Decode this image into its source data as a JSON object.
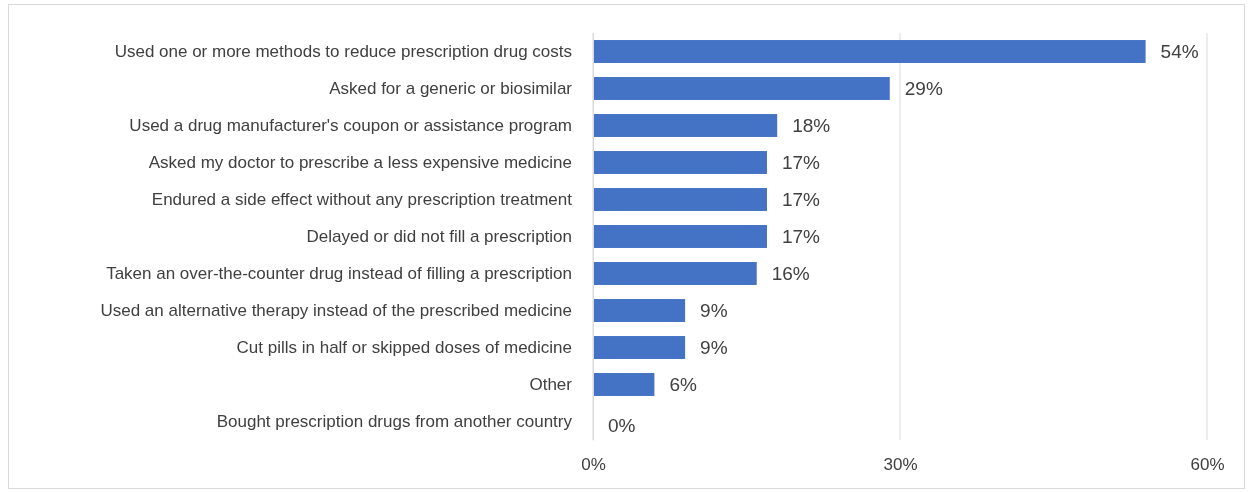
{
  "chart_data": {
    "type": "bar",
    "orientation": "horizontal",
    "categories": [
      "Used one or more methods to reduce prescription drug costs",
      "Asked for a generic or biosimilar",
      "Used a drug manufacturer's coupon or assistance program",
      "Asked my doctor to prescribe a less expensive medicine",
      "Endured a side effect without any prescription treatment",
      "Delayed or did not fill a prescription",
      "Taken an over-the-counter drug instead of filling a prescription",
      "Used an alternative therapy instead of the prescribed medicine",
      "Cut pills in half or skipped doses of medicine",
      "Other",
      "Bought prescription drugs from another country"
    ],
    "values": [
      54,
      29,
      18,
      17,
      17,
      17,
      16,
      9,
      9,
      6,
      0
    ],
    "value_labels": [
      "54%",
      "29%",
      "18%",
      "17%",
      "17%",
      "17%",
      "16%",
      "9%",
      "9%",
      "6%",
      "0%"
    ],
    "color": "#4472c4",
    "xlim": [
      0,
      60
    ],
    "xticks": [
      {
        "value": 0,
        "label": "0%"
      },
      {
        "value": 30,
        "label": "30%"
      },
      {
        "value": 60,
        "label": "60%"
      }
    ],
    "grid": "x"
  }
}
